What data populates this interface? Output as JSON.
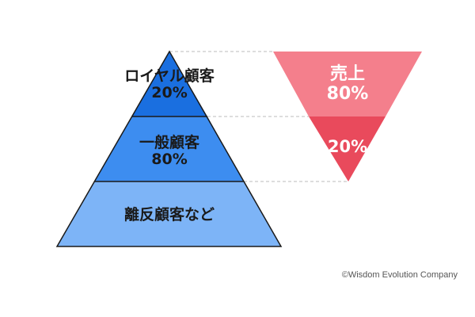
{
  "pyramid": {
    "tiers": [
      {
        "label": "ロイヤル顧客",
        "percent": "20%",
        "color": "#1a6fe0"
      },
      {
        "label": "一般顧客",
        "percent": "80%",
        "color": "#3d8df0"
      },
      {
        "label": "離反顧客など",
        "percent": "",
        "color": "#7db4f7"
      }
    ],
    "outline_color": "#1a1a1a"
  },
  "sales_funnel": {
    "title": "売上",
    "top_percent": "80%",
    "bottom_percent": "20%",
    "top_color": "#f47f8c",
    "bottom_color": "#e94a5c"
  },
  "guide_line_color": "#bbbbbb",
  "copyright": "©Wisdom Evolution Company"
}
